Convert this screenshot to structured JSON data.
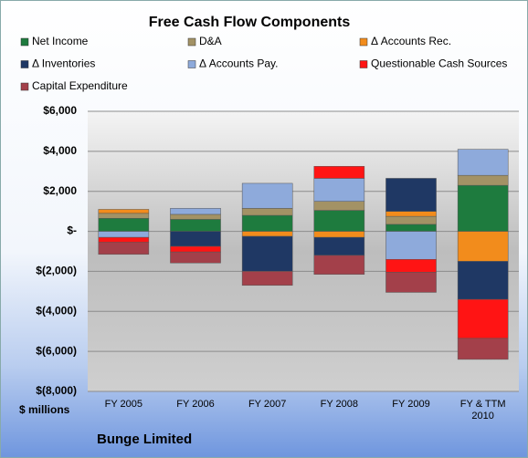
{
  "chart_data": {
    "type": "stacked_bar",
    "title": "Free Cash Flow Components",
    "y_label": "$ millions",
    "annotation": "Bunge Limited",
    "categories": [
      "FY 2005",
      "FY 2006",
      "FY 2007",
      "FY 2008",
      "FY 2009",
      "FY & TTM 2010"
    ],
    "series": [
      {
        "name": "Net Income",
        "color": "#1e7b3e",
        "values": [
          650,
          600,
          800,
          1050,
          350,
          2300
        ]
      },
      {
        "name": "D&A",
        "color": "#a39265",
        "values": [
          250,
          250,
          350,
          450,
          400,
          500
        ]
      },
      {
        "name": "Δ Accounts Rec.",
        "color": "#f28c1c",
        "values": [
          200,
          0,
          -250,
          -300,
          250,
          -1500
        ]
      },
      {
        "name": "Δ Inventories",
        "color": "#1f3864",
        "values": [
          0,
          -750,
          -1750,
          -900,
          1650,
          -1900
        ]
      },
      {
        "name": "Δ Accounts Pay.",
        "color": "#8eaadb",
        "values": [
          -300,
          300,
          1250,
          1150,
          -1400,
          1300
        ]
      },
      {
        "name": "Questionable Cash Sources",
        "color": "#ff1414",
        "values": [
          -250,
          -280,
          0,
          600,
          -650,
          -1950
        ]
      },
      {
        "name": "Capital Expenditure",
        "color": "#a3404a",
        "values": [
          -600,
          -550,
          -700,
          -950,
          -1000,
          -1050
        ]
      }
    ],
    "ylim": [
      -8000,
      6000
    ],
    "yticks": [
      {
        "value": -8000,
        "label": "$(8,000)"
      },
      {
        "value": -6000,
        "label": "$(6,000)"
      },
      {
        "value": -4000,
        "label": "$(4,000)"
      },
      {
        "value": -2000,
        "label": "$(2,000)"
      },
      {
        "value": 0,
        "label": "$-"
      },
      {
        "value": 2000,
        "label": "$2,000"
      },
      {
        "value": 4000,
        "label": "$4,000"
      },
      {
        "value": 6000,
        "label": "$6,000"
      }
    ],
    "grid": true
  }
}
